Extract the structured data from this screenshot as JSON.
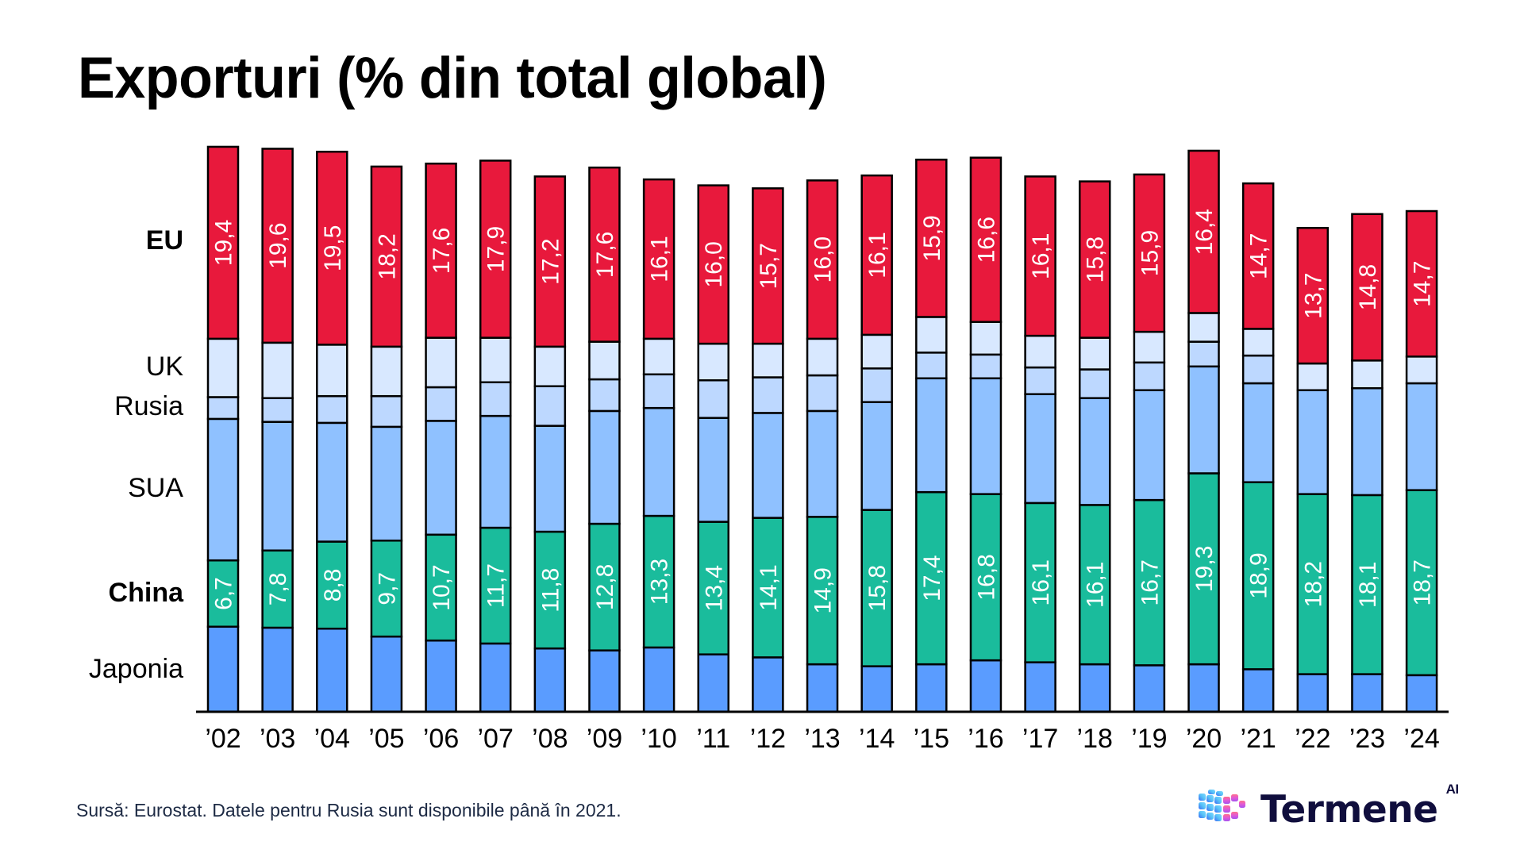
{
  "title": "Exporturi (% din total global)",
  "source": "Sursă: Eurostat. Datele pentru Rusia sunt disponibile până în 2021.",
  "brand": {
    "name": "Termene",
    "superscript": "AI",
    "icon": "cube-logo-icon"
  },
  "chart_data": {
    "type": "bar",
    "stacked": true,
    "title": "Exporturi (% din total global)",
    "xlabel": "",
    "ylabel": "% din total global",
    "ylim": [
      0,
      47
    ],
    "grid": false,
    "legend": "left (row labels aligned to segments)",
    "categories": [
      "’02",
      "’03",
      "’04",
      "’05",
      "’06",
      "’07",
      "’08",
      "’09",
      "’10",
      "’11",
      "’12",
      "’13",
      "’14",
      "’15",
      "’16",
      "’17",
      "’18",
      "’19",
      "’20",
      "’21",
      "’22",
      "’23",
      "’24"
    ],
    "series": [
      {
        "name": "Japonia",
        "color": "#5a9cff",
        "bold": false,
        "labeled": false,
        "values": [
          8.6,
          8.5,
          8.4,
          7.6,
          7.2,
          6.9,
          6.4,
          6.2,
          6.5,
          5.8,
          5.5,
          4.8,
          4.6,
          4.8,
          5.2,
          5.0,
          4.8,
          4.7,
          4.8,
          4.3,
          3.8,
          3.8,
          3.7
        ]
      },
      {
        "name": "China",
        "color": "#1abc9c",
        "bold": true,
        "labeled": true,
        "values": [
          6.7,
          7.8,
          8.8,
          9.7,
          10.7,
          11.7,
          11.8,
          12.8,
          13.3,
          13.4,
          14.1,
          14.9,
          15.8,
          17.4,
          16.8,
          16.1,
          16.1,
          16.7,
          19.3,
          18.9,
          18.2,
          18.1,
          18.7
        ]
      },
      {
        "name": "SUA",
        "color": "#8fc1ff",
        "bold": false,
        "labeled": false,
        "values": [
          14.3,
          13.0,
          12.0,
          11.5,
          11.5,
          11.3,
          10.7,
          11.4,
          10.9,
          10.5,
          10.6,
          10.7,
          10.9,
          11.5,
          11.7,
          11.0,
          10.8,
          11.1,
          10.8,
          10.0,
          10.5,
          10.8,
          10.8
        ]
      },
      {
        "name": "Rusia",
        "color": "#bdd8ff",
        "bold": false,
        "labeled": false,
        "values": [
          2.2,
          2.4,
          2.7,
          3.1,
          3.4,
          3.4,
          4.0,
          3.2,
          3.4,
          3.8,
          3.6,
          3.6,
          3.4,
          2.6,
          2.4,
          2.7,
          2.9,
          2.8,
          2.5,
          2.8,
          null,
          null,
          null
        ]
      },
      {
        "name": "UK",
        "color": "#d8e8ff",
        "bold": false,
        "labeled": false,
        "values": [
          5.9,
          5.6,
          5.2,
          5.0,
          5.0,
          4.5,
          4.0,
          3.8,
          3.6,
          3.7,
          3.4,
          3.7,
          3.4,
          3.6,
          3.3,
          3.2,
          3.2,
          3.1,
          2.9,
          2.7,
          2.7,
          2.8,
          2.7
        ]
      },
      {
        "name": "EU",
        "color": "#e8193c",
        "bold": true,
        "labeled": true,
        "values": [
          19.4,
          19.6,
          19.5,
          18.2,
          17.6,
          17.9,
          17.2,
          17.6,
          16.1,
          16.0,
          15.7,
          16.0,
          16.1,
          15.9,
          16.6,
          16.1,
          15.8,
          15.9,
          16.4,
          14.7,
          13.7,
          14.8,
          14.7
        ]
      }
    ],
    "data_label_format": "decimal comma, one decimal",
    "row_labels": [
      {
        "name": "EU",
        "bold": true
      },
      {
        "name": "UK",
        "bold": false
      },
      {
        "name": "Rusia",
        "bold": false
      },
      {
        "name": "SUA",
        "bold": false
      },
      {
        "name": "China",
        "bold": true
      },
      {
        "name": "Japonia",
        "bold": false
      }
    ]
  }
}
